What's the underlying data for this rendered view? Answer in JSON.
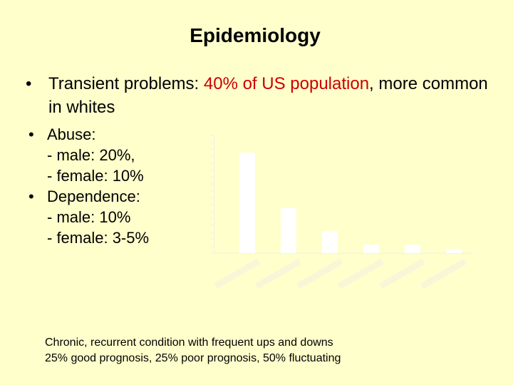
{
  "title": "Epidemiology",
  "bullet1": {
    "prefix": "Transient problems: ",
    "highlight": "40% of US population",
    "suffix": ", more common in whites"
  },
  "abuse": {
    "label": "Abuse:",
    "male": "- male: 20%,",
    "female": "- female: 10%"
  },
  "dependence": {
    "label": "Dependence:",
    "male": "- male: 10%",
    "female": "- female: 3-5%"
  },
  "footer": {
    "line1": "Chronic, recurrent condition with frequent ups and downs",
    "line2": "25% good prognosis, 25% poor prognosis, 50% fluctuating"
  },
  "bullet_glyph": "•",
  "chart_data": {
    "type": "bar",
    "title": "",
    "xlabel": "",
    "ylabel": "",
    "values": [
      14.5,
      6.5,
      3.2,
      1.2,
      1.2,
      0.6
    ],
    "ylim": [
      0,
      17
    ],
    "grid": false,
    "bar_color": "#ffffff"
  }
}
